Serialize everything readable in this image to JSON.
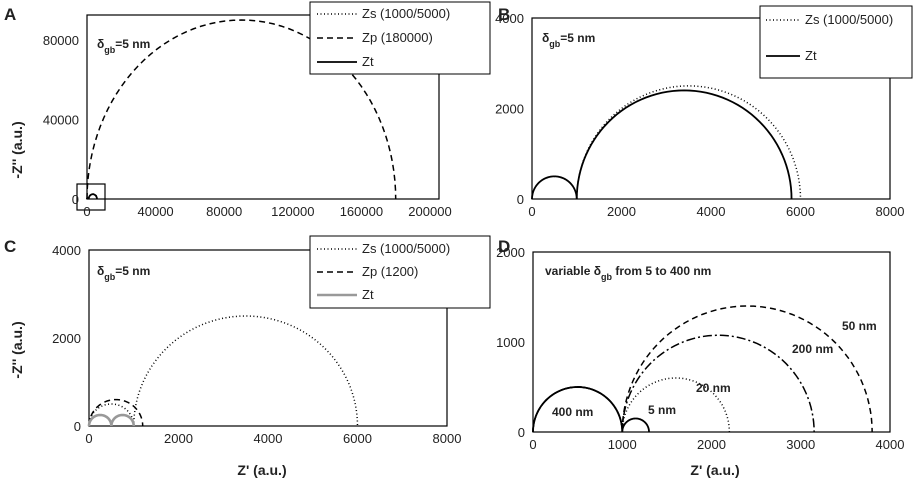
{
  "figure": {
    "shared_y_title": "-Z'' (a.u.)",
    "shared_x_title": "Z' (a.u.)"
  },
  "chart_data": [
    {
      "panel": "A",
      "type": "line",
      "xlim": [
        0,
        200000
      ],
      "ylim": [
        0,
        90000
      ],
      "xticks": [
        0,
        40000,
        80000,
        120000,
        160000,
        200000
      ],
      "yticks": [
        0,
        40000,
        80000
      ],
      "annotation": "δgb=5 nm",
      "inset_box": true,
      "legend_position": "top-right",
      "series": [
        {
          "name": "Zs (1000/5000)",
          "style": "dotted",
          "color": "#000000",
          "arcs": [
            [
              0,
              1000
            ],
            [
              1000,
              6000
            ]
          ]
        },
        {
          "name": "Zp (180000)",
          "style": "dashed",
          "color": "#000000",
          "arcs": [
            [
              0,
              180000
            ]
          ]
        },
        {
          "name": "Zt",
          "style": "solid",
          "color": "#000000",
          "arcs": [
            [
              0,
              1000
            ],
            [
              1000,
              5800
            ]
          ]
        }
      ]
    },
    {
      "panel": "B",
      "type": "line",
      "xlim": [
        0,
        8000
      ],
      "ylim": [
        0,
        4000
      ],
      "xticks": [
        0,
        2000,
        4000,
        6000,
        8000
      ],
      "yticks": [
        0,
        2000,
        4000
      ],
      "annotation": "δgb=5 nm",
      "legend_position": "top-right",
      "series": [
        {
          "name": "Zs (1000/5000)",
          "style": "dotted",
          "color": "#000000",
          "arcs": [
            [
              0,
              1000
            ],
            [
              1000,
              6000
            ]
          ]
        },
        {
          "name": "Zt",
          "style": "solid",
          "color": "#000000",
          "arcs": [
            [
              0,
              1000
            ],
            [
              1000,
              5800
            ]
          ]
        }
      ]
    },
    {
      "panel": "C",
      "type": "line",
      "xlim": [
        0,
        8000
      ],
      "ylim": [
        0,
        4000
      ],
      "xticks": [
        0,
        2000,
        4000,
        6000,
        8000
      ],
      "yticks": [
        0,
        2000,
        4000
      ],
      "annotation": "δgb=5 nm",
      "legend_position": "top-right",
      "series": [
        {
          "name": "Zs (1000/5000)",
          "style": "dotted",
          "color": "#000000",
          "arcs": [
            [
              0,
              1000
            ],
            [
              1000,
              6000
            ]
          ]
        },
        {
          "name": "Zp (1200)",
          "style": "dashed",
          "color": "#000000",
          "arcs": [
            [
              0,
              1200
            ]
          ]
        },
        {
          "name": "Zt",
          "style": "solid",
          "color": "#999999",
          "arcs": [
            [
              0,
              500
            ],
            [
              500,
              1000
            ]
          ]
        }
      ]
    },
    {
      "panel": "D",
      "type": "line",
      "xlim": [
        0,
        4000
      ],
      "ylim": [
        0,
        2000
      ],
      "xticks": [
        0,
        1000,
        2000,
        3000,
        4000
      ],
      "yticks": [
        0,
        1000,
        2000
      ],
      "annotation": "variable δgb from 5 to 400 nm",
      "series": [
        {
          "name": "5 nm",
          "style": "solid",
          "color": "#000000",
          "arcs": [
            [
              0,
              1000
            ],
            [
              1000,
              1300
            ]
          ]
        },
        {
          "name": "20 nm",
          "style": "dotted",
          "color": "#000000",
          "arcs": [
            [
              0,
              1000
            ],
            [
              1000,
              2200
            ]
          ]
        },
        {
          "name": "50 nm",
          "style": "dashed",
          "color": "#000000",
          "arcs": [
            [
              0,
              1000
            ],
            [
              1000,
              3800
            ]
          ]
        },
        {
          "name": "200 nm",
          "style": "dashdot",
          "color": "#000000",
          "arcs": [
            [
              0,
              1000
            ],
            [
              1000,
              3150
            ]
          ]
        },
        {
          "name": "400 nm",
          "style": "longdash",
          "color": "#000000",
          "arcs": [
            [
              0,
              1000
            ]
          ]
        }
      ]
    }
  ]
}
